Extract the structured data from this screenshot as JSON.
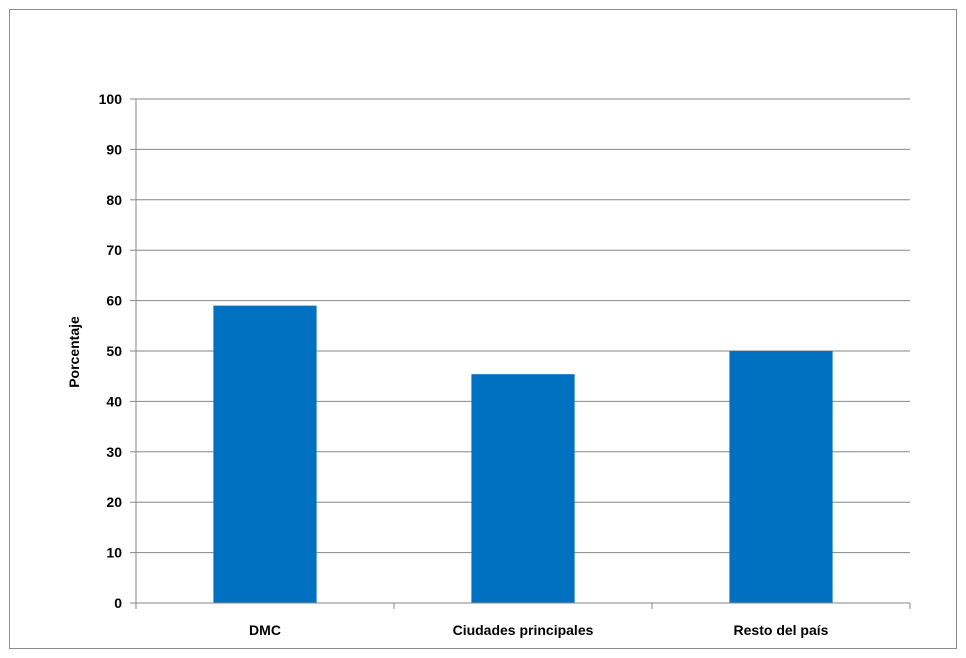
{
  "chart_data": {
    "type": "bar",
    "title": "",
    "xlabel": "",
    "ylabel": "Porcentaje",
    "ylim": [
      0,
      100
    ],
    "yticks": [
      "0",
      "10",
      "20",
      "30",
      "40",
      "50",
      "60",
      "70",
      "80",
      "90",
      "100"
    ],
    "categories": [
      "DMC",
      "Ciudades principales",
      "Resto del país"
    ],
    "values": [
      59,
      45.4,
      50
    ],
    "grid": true,
    "legend": "none",
    "bar_color": "#0070c0"
  }
}
